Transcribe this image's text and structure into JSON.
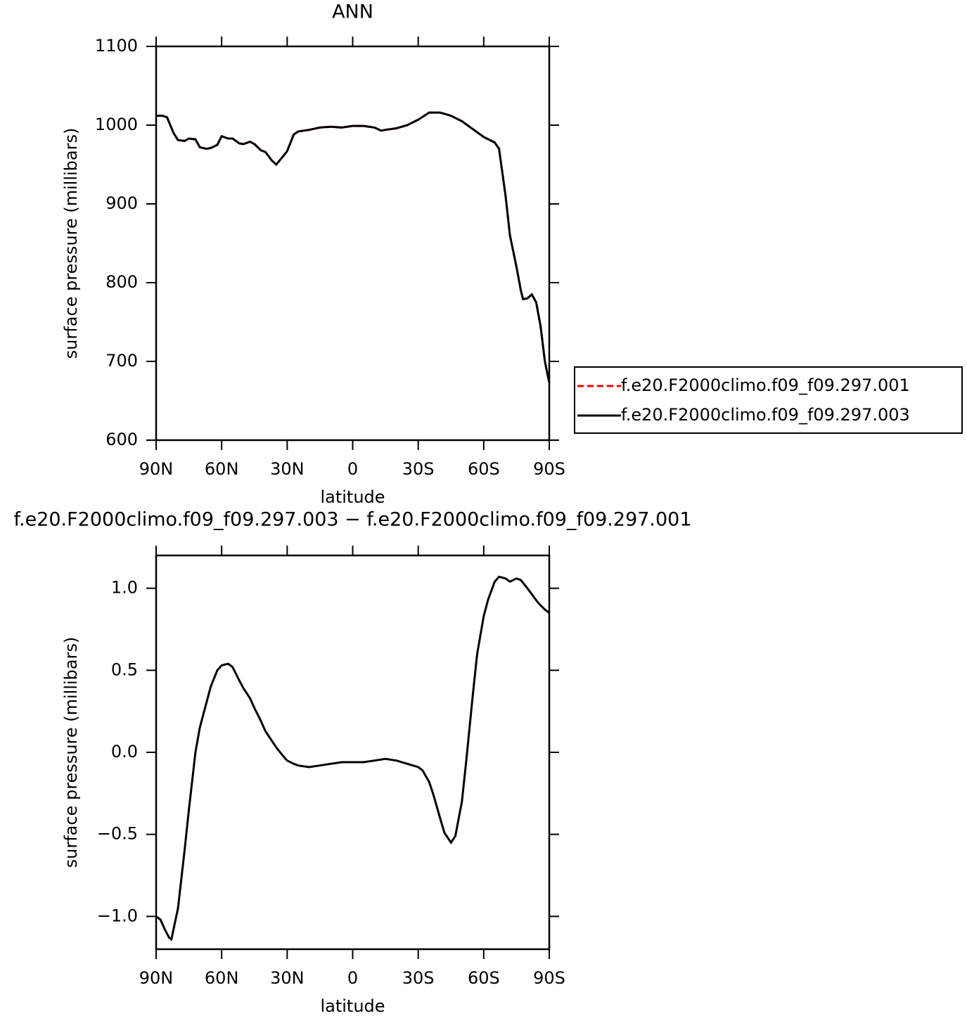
{
  "chart_data": [
    {
      "type": "line",
      "title": "ANN",
      "x_label": "latitude",
      "y_label": "surface pressure (millibars)",
      "x": [
        90,
        87,
        85,
        82,
        80,
        77,
        75,
        72,
        70,
        67,
        65,
        62,
        60,
        57,
        55,
        52,
        50,
        47,
        45,
        42,
        40,
        37,
        35,
        32,
        30,
        27,
        25,
        20,
        15,
        10,
        5,
        0,
        -5,
        -10,
        -13,
        -15,
        -20,
        -25,
        -30,
        -35,
        -40,
        -45,
        -50,
        -55,
        -60,
        -65,
        -67,
        -70,
        -72,
        -75,
        -77,
        -78,
        -80,
        -82,
        -84,
        -86,
        -88,
        -90
      ],
      "series": [
        {
          "name": "f.e20.F2000climo.f09_f09.297.001",
          "color": "#ff0000",
          "linestyle": "dashed",
          "values": [
            1012,
            1012,
            1010,
            990,
            981,
            980,
            983,
            982,
            972,
            970,
            971,
            975,
            986,
            983,
            983,
            977,
            976,
            979,
            976,
            968,
            966,
            955,
            950,
            960,
            967,
            988,
            992,
            994,
            997,
            998,
            997,
            999,
            999,
            997,
            993,
            994,
            996,
            1000,
            1007,
            1016,
            1016,
            1012,
            1005,
            995,
            985,
            978,
            970,
            910,
            860,
            820,
            790,
            779,
            780,
            785,
            775,
            745,
            700,
            673
          ]
        },
        {
          "name": "f.e20.F2000climo.f09_f09.297.003",
          "color": "#000000",
          "linestyle": "solid",
          "values": [
            1012,
            1012,
            1010,
            990,
            981,
            980,
            983,
            982,
            972,
            970,
            971,
            975,
            986,
            983,
            983,
            977,
            976,
            979,
            976,
            968,
            966,
            955,
            950,
            960,
            967,
            988,
            992,
            994,
            997,
            998,
            997,
            999,
            999,
            997,
            993,
            994,
            996,
            1000,
            1007,
            1016,
            1016,
            1012,
            1005,
            995,
            985,
            978,
            970,
            910,
            860,
            820,
            790,
            779,
            780,
            785,
            775,
            745,
            700,
            673
          ]
        }
      ],
      "xlim": [
        90,
        -90
      ],
      "xticks": [
        {
          "value": 90,
          "label": "90N"
        },
        {
          "value": 60,
          "label": "60N"
        },
        {
          "value": 30,
          "label": "30N"
        },
        0,
        {
          "value": -30,
          "label": "30S"
        },
        {
          "value": -60,
          "label": "60S"
        },
        {
          "value": -90,
          "label": "90S"
        }
      ],
      "ylim": [
        600,
        1100
      ],
      "yticks": [
        600,
        700,
        800,
        900,
        1000,
        1100
      ],
      "legend": "right"
    },
    {
      "type": "line",
      "title": "f.e20.F2000climo.f09_f09.297.003 − f.e20.F2000climo.f09_f09.297.001",
      "x_label": "latitude",
      "y_label": "surface pressure (millibars)",
      "x": [
        90,
        88,
        86,
        84,
        83,
        80,
        77,
        75,
        72,
        70,
        67,
        65,
        62,
        60,
        57,
        55,
        52,
        50,
        47,
        45,
        42,
        40,
        37,
        35,
        32,
        30,
        27,
        25,
        20,
        15,
        10,
        5,
        0,
        -5,
        -10,
        -15,
        -20,
        -25,
        -30,
        -32,
        -35,
        -37,
        -40,
        -42,
        -45,
        -47,
        -50,
        -52,
        -55,
        -57,
        -60,
        -62,
        -65,
        -67,
        -70,
        -72,
        -75,
        -77,
        -80,
        -85,
        -88,
        -90
      ],
      "series": [
        {
          "color": "#000000",
          "linestyle": "solid",
          "values": [
            -1.0,
            -1.02,
            -1.08,
            -1.13,
            -1.14,
            -0.95,
            -0.6,
            -0.35,
            0.0,
            0.15,
            0.3,
            0.4,
            0.5,
            0.53,
            0.54,
            0.52,
            0.44,
            0.39,
            0.33,
            0.27,
            0.19,
            0.13,
            0.07,
            0.03,
            -0.02,
            -0.05,
            -0.07,
            -0.08,
            -0.09,
            -0.08,
            -0.07,
            -0.06,
            -0.06,
            -0.06,
            -0.05,
            -0.04,
            -0.05,
            -0.07,
            -0.09,
            -0.11,
            -0.18,
            -0.26,
            -0.4,
            -0.49,
            -0.55,
            -0.51,
            -0.3,
            -0.05,
            0.35,
            0.6,
            0.83,
            0.93,
            1.04,
            1.07,
            1.06,
            1.04,
            1.06,
            1.05,
            1.0,
            0.91,
            0.87,
            0.85
          ]
        }
      ],
      "xlim": [
        90,
        -90
      ],
      "xticks": [
        {
          "value": 90,
          "label": "90N"
        },
        {
          "value": 60,
          "label": "60N"
        },
        {
          "value": 30,
          "label": "30N"
        },
        0,
        {
          "value": -30,
          "label": "30S"
        },
        {
          "value": -60,
          "label": "60S"
        },
        {
          "value": -90,
          "label": "90S"
        }
      ],
      "ylim": [
        -1.2,
        1.2
      ],
      "yticks": [
        {
          "value": -1.0,
          "label": "−1.0"
        },
        {
          "value": -0.5,
          "label": "−0.5"
        },
        {
          "value": 0.0,
          "label": "0.0"
        },
        0.5,
        {
          "value": 1.0,
          "label": "1.0"
        }
      ]
    }
  ]
}
